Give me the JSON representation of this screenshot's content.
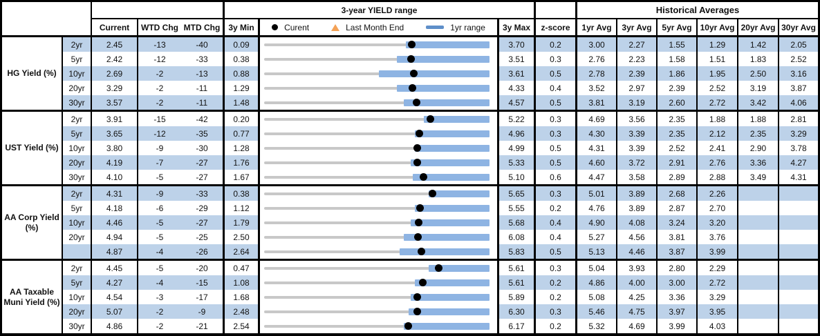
{
  "header": {
    "range_title": "3-year YIELD range",
    "hist_title": "Historical Averages",
    "cols": {
      "current": "Current",
      "wtd": "WTD Chg",
      "mtd": "MTD Chg",
      "min": "3y Min",
      "max": "3y Max",
      "z": "z-score",
      "avgs": [
        "1yr Avg",
        "3yr Avg",
        "5yr Avg",
        "10yr Avg",
        "20yr Avg",
        "30yr Avg"
      ]
    },
    "legend": {
      "current": "Curent",
      "last_month_end": "Last Month End",
      "range_1yr": "1yr range"
    }
  },
  "colors": {
    "band": "#bdd2e9",
    "bar": "#8eb4e3",
    "track": "#c8c8c8",
    "dot": "#000000",
    "triangle": "#f4a257",
    "legend_bar": "#5e8fc9",
    "border": "#000000"
  },
  "chart_data": {
    "type": "table",
    "note": "Each row has an inline range chart: gray line spans 3y Min..3y Max, blue bar is 1yr range (fractions of span), black dot = Current, orange triangle = Last Month End (Current - MTD/100).",
    "groups": [
      {
        "label": "HG Yield (%)",
        "rows": [
          {
            "tenor": "2yr",
            "current": "2.45",
            "wtd": "-13",
            "mtd": "-40",
            "min": "0.09",
            "max": "3.70",
            "z": "0.2",
            "avgs": [
              "3.00",
              "2.27",
              "1.55",
              "1.29",
              "1.42",
              "2.05"
            ],
            "bar1yr": [
              0.63,
              1.0
            ]
          },
          {
            "tenor": "5yr",
            "current": "2.42",
            "wtd": "-12",
            "mtd": "-33",
            "min": "0.38",
            "max": "3.51",
            "z": "0.3",
            "avgs": [
              "2.76",
              "2.23",
              "1.58",
              "1.51",
              "1.83",
              "2.52"
            ],
            "bar1yr": [
              0.59,
              1.0
            ]
          },
          {
            "tenor": "10yr",
            "current": "2.69",
            "wtd": "-2",
            "mtd": "-13",
            "min": "0.88",
            "max": "3.61",
            "z": "0.5",
            "avgs": [
              "2.78",
              "2.39",
              "1.86",
              "1.95",
              "2.50",
              "3.16"
            ],
            "bar1yr": [
              0.51,
              1.0
            ]
          },
          {
            "tenor": "20yr",
            "current": "3.29",
            "wtd": "-2",
            "mtd": "-11",
            "min": "1.29",
            "max": "4.33",
            "z": "0.4",
            "avgs": [
              "3.52",
              "2.97",
              "2.39",
              "2.52",
              "3.19",
              "3.87"
            ],
            "bar1yr": [
              0.59,
              1.0
            ]
          },
          {
            "tenor": "30yr",
            "current": "3.57",
            "wtd": "-2",
            "mtd": "-11",
            "min": "1.48",
            "max": "4.57",
            "z": "0.5",
            "avgs": [
              "3.81",
              "3.19",
              "2.60",
              "2.72",
              "3.42",
              "4.06"
            ],
            "bar1yr": [
              0.62,
              1.0
            ]
          }
        ]
      },
      {
        "label": "UST Yield (%)",
        "rows": [
          {
            "tenor": "2yr",
            "current": "3.91",
            "wtd": "-15",
            "mtd": "-42",
            "min": "0.20",
            "max": "5.22",
            "z": "0.3",
            "avgs": [
              "4.69",
              "3.56",
              "2.35",
              "1.88",
              "1.88",
              "2.81"
            ],
            "bar1yr": [
              0.71,
              1.0
            ]
          },
          {
            "tenor": "5yr",
            "current": "3.65",
            "wtd": "-12",
            "mtd": "-35",
            "min": "0.77",
            "max": "4.96",
            "z": "0.3",
            "avgs": [
              "4.30",
              "3.39",
              "2.35",
              "2.12",
              "2.35",
              "3.29"
            ],
            "bar1yr": [
              0.67,
              1.0
            ]
          },
          {
            "tenor": "10yr",
            "current": "3.80",
            "wtd": "-9",
            "mtd": "-30",
            "min": "1.28",
            "max": "4.99",
            "z": "0.5",
            "avgs": [
              "4.31",
              "3.39",
              "2.52",
              "2.41",
              "2.90",
              "3.78"
            ],
            "bar1yr": [
              0.67,
              1.0
            ]
          },
          {
            "tenor": "20yr",
            "current": "4.19",
            "wtd": "-7",
            "mtd": "-27",
            "min": "1.76",
            "max": "5.33",
            "z": "0.5",
            "avgs": [
              "4.60",
              "3.72",
              "2.91",
              "2.76",
              "3.36",
              "4.27"
            ],
            "bar1yr": [
              0.65,
              1.0
            ]
          },
          {
            "tenor": "30yr",
            "current": "4.10",
            "wtd": "-5",
            "mtd": "-27",
            "min": "1.67",
            "max": "5.10",
            "z": "0.6",
            "avgs": [
              "4.47",
              "3.58",
              "2.89",
              "2.88",
              "3.49",
              "4.31"
            ],
            "bar1yr": [
              0.66,
              1.0
            ]
          }
        ]
      },
      {
        "label": "AA Corp Yield (%)",
        "rows": [
          {
            "tenor": "2yr",
            "current": "4.31",
            "wtd": "-9",
            "mtd": "-33",
            "min": "0.38",
            "max": "5.65",
            "z": "0.3",
            "avgs": [
              "5.01",
              "3.89",
              "2.68",
              "2.26",
              "",
              ""
            ],
            "bar1yr": [
              0.73,
              1.0
            ]
          },
          {
            "tenor": "5yr",
            "current": "4.18",
            "wtd": "-6",
            "mtd": "-29",
            "min": "1.12",
            "max": "5.55",
            "z": "0.2",
            "avgs": [
              "4.76",
              "3.89",
              "2.87",
              "2.70",
              "",
              ""
            ],
            "bar1yr": [
              0.67,
              1.0
            ]
          },
          {
            "tenor": "10yr",
            "current": "4.46",
            "wtd": "-5",
            "mtd": "-27",
            "min": "1.79",
            "max": "5.68",
            "z": "0.4",
            "avgs": [
              "4.90",
              "4.08",
              "3.24",
              "3.20",
              "",
              ""
            ],
            "bar1yr": [
              0.65,
              1.0
            ]
          },
          {
            "tenor": "20yr",
            "current": "4.94",
            "wtd": "-5",
            "mtd": "-25",
            "min": "2.50",
            "max": "6.08",
            "z": "0.4",
            "avgs": [
              "5.27",
              "4.56",
              "3.81",
              "3.76",
              "",
              ""
            ],
            "bar1yr": [
              0.62,
              1.0
            ]
          },
          {
            "tenor": "",
            "current": "4.87",
            "wtd": "-4",
            "mtd": "-26",
            "min": "2.64",
            "max": "5.83",
            "z": "0.5",
            "avgs": [
              "5.13",
              "4.46",
              "3.87",
              "3.99",
              "",
              ""
            ],
            "bar1yr": [
              0.6,
              1.0
            ]
          }
        ]
      },
      {
        "label": "AA Taxable Muni Yield (%)",
        "rows": [
          {
            "tenor": "2yr",
            "current": "4.45",
            "wtd": "-5",
            "mtd": "-20",
            "min": "0.47",
            "max": "5.61",
            "z": "0.3",
            "avgs": [
              "5.04",
              "3.93",
              "2.80",
              "2.29",
              "",
              ""
            ],
            "bar1yr": [
              0.73,
              1.0
            ]
          },
          {
            "tenor": "5yr",
            "current": "4.27",
            "wtd": "-4",
            "mtd": "-15",
            "min": "1.08",
            "max": "5.61",
            "z": "0.2",
            "avgs": [
              "4.86",
              "4.00",
              "3.00",
              "2.72",
              "",
              ""
            ],
            "bar1yr": [
              0.67,
              1.0
            ]
          },
          {
            "tenor": "10yr",
            "current": "4.54",
            "wtd": "-3",
            "mtd": "-17",
            "min": "1.68",
            "max": "5.89",
            "z": "0.2",
            "avgs": [
              "5.08",
              "4.25",
              "3.36",
              "3.29",
              "",
              ""
            ],
            "bar1yr": [
              0.65,
              1.0
            ]
          },
          {
            "tenor": "20yr",
            "current": "5.07",
            "wtd": "-2",
            "mtd": "-9",
            "min": "2.48",
            "max": "6.30",
            "z": "0.3",
            "avgs": [
              "5.46",
              "4.75",
              "3.97",
              "3.95",
              "",
              ""
            ],
            "bar1yr": [
              0.64,
              1.0
            ]
          },
          {
            "tenor": "30yr",
            "current": "4.86",
            "wtd": "-2",
            "mtd": "-21",
            "min": "2.54",
            "max": "6.17",
            "z": "0.2",
            "avgs": [
              "5.32",
              "4.69",
              "3.99",
              "4.03",
              "",
              ""
            ],
            "bar1yr": [
              0.62,
              1.0
            ]
          }
        ]
      }
    ]
  }
}
